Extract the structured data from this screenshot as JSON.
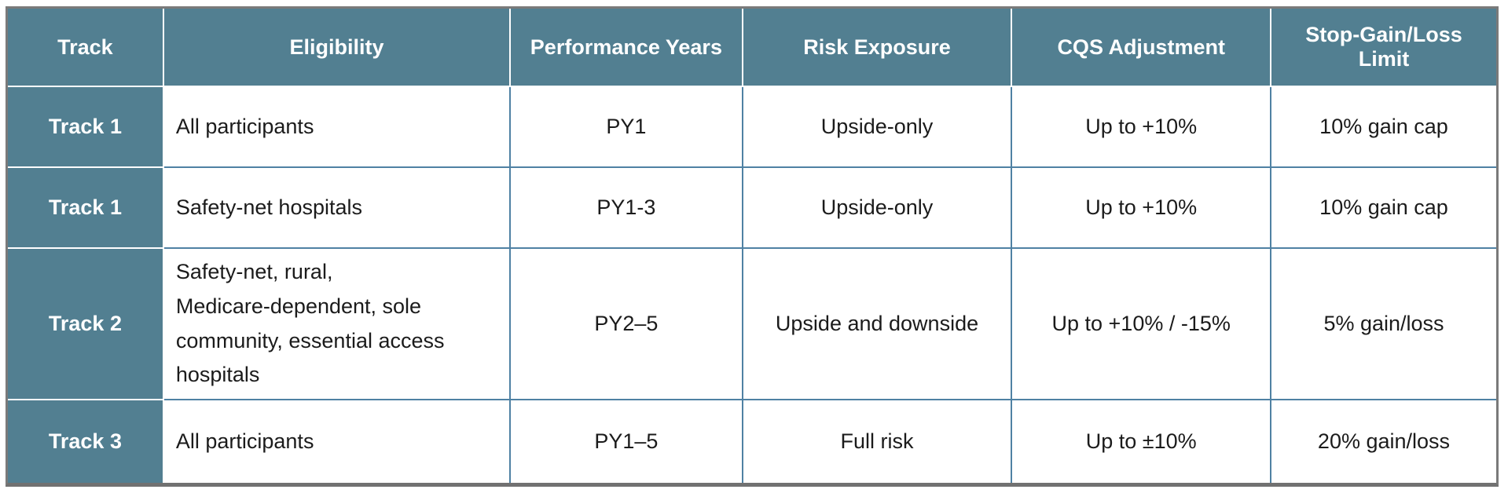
{
  "chart_data": {
    "type": "table",
    "title": "",
    "columns": [
      "Track",
      "Eligibility",
      "Performance Years",
      "Risk Exposure",
      "CQS Adjustment",
      "Stop-Gain/Loss Limit"
    ],
    "rows": [
      [
        "Track 1",
        "All participants",
        "PY1",
        "Upside-only",
        "Up to +10%",
        "10% gain cap"
      ],
      [
        "Track 1",
        "Safety-net hospitals",
        "PY1-3",
        "Upside-only",
        "Up to +10%",
        "10% gain cap"
      ],
      [
        "Track 2",
        "Safety-net, rural,\nMedicare-dependent, sole\ncommunity, essential access\nhospitals",
        "PY2–5",
        "Upside and downside",
        "Up to +10% / -15%",
        "5% gain/loss"
      ],
      [
        "Track 3",
        "All participants",
        "PY1–5",
        "Full risk",
        "Up to ±10%",
        "20% gain/loss"
      ]
    ]
  },
  "colors": {
    "header_bg": "#527f91",
    "header_text": "#ffffff",
    "body_text": "#1b1b1b",
    "grid_line": "#4f81a3",
    "teal_separator": "#ffffff",
    "outer_border": "#7a7a7a",
    "background": "#ffffff"
  }
}
